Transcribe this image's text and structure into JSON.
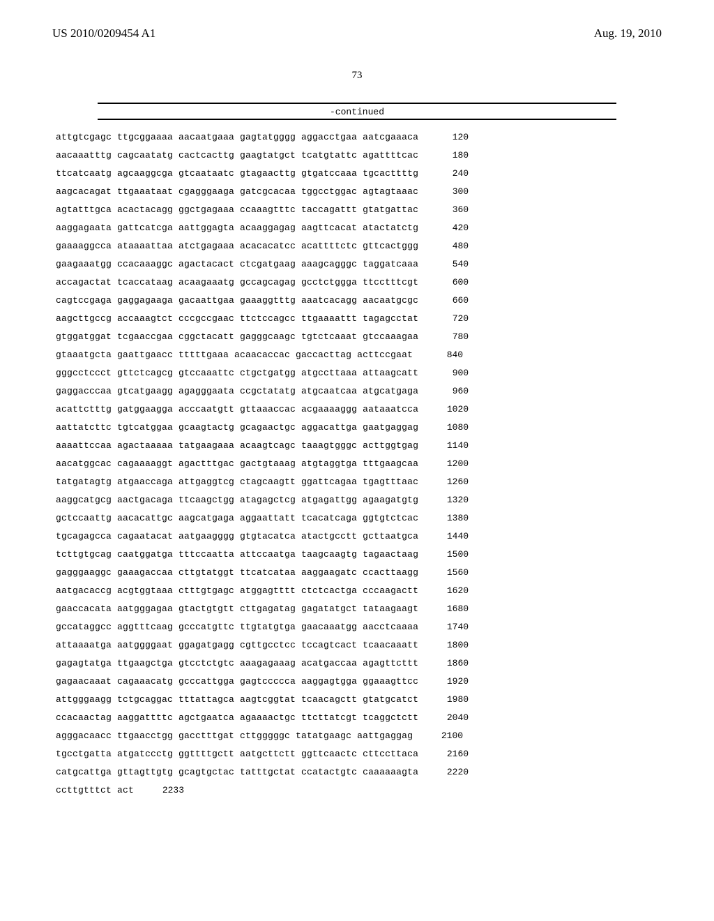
{
  "header": {
    "pub_number": "US 2010/0209454 A1",
    "pub_date": "Aug. 19, 2010"
  },
  "page_number": "73",
  "continued_label": "-continued",
  "sequence": {
    "rows": [
      {
        "g": [
          "attgtcgagc",
          "ttgcggaaaa",
          "aacaatgaaa",
          "gagtatgggg",
          "aggacctgaa",
          "aatcgaaaca"
        ],
        "pos": "120"
      },
      {
        "g": [
          "aacaaatttg",
          "cagcaatatg",
          "cactcacttg",
          "gaagtatgct",
          "tcatgtattc",
          "agattttcac"
        ],
        "pos": "180"
      },
      {
        "g": [
          "ttcatcaatg",
          "agcaaggcga",
          "gtcaataatc",
          "gtagaacttg",
          "gtgatccaaa",
          "tgcacttttg"
        ],
        "pos": "240"
      },
      {
        "g": [
          "aagcacagat",
          "ttgaaataat",
          "cgagggaaga",
          "gatcgcacaa",
          "tggcctggac",
          "agtagtaaac"
        ],
        "pos": "300"
      },
      {
        "g": [
          "agtatttgca",
          "acactacagg",
          "ggctgagaaa",
          "ccaaagtttc",
          "taccagattt",
          "gtatgattac"
        ],
        "pos": "360"
      },
      {
        "g": [
          "aaggagaata",
          "gattcatcga",
          "aattggagta",
          "acaaggagag",
          "aagttcacat",
          "atactatctg"
        ],
        "pos": "420"
      },
      {
        "g": [
          "gaaaaggcca",
          "ataaaattaa",
          "atctgagaaa",
          "acacacatcc",
          "acattttctc",
          "gttcactggg"
        ],
        "pos": "480"
      },
      {
        "g": [
          "gaagaaatgg",
          "ccacaaaggc",
          "agactacact",
          "ctcgatgaag",
          "aaagcagggc",
          "taggatcaaa"
        ],
        "pos": "540"
      },
      {
        "g": [
          "accagactat",
          "tcaccataag",
          "acaagaaatg",
          "gccagcagag",
          "gcctctggga",
          "ttcctttcgt"
        ],
        "pos": "600"
      },
      {
        "g": [
          "cagtccgaga",
          "gaggagaaga",
          "gacaattgaa",
          "gaaaggtttg",
          "aaatcacagg",
          "aacaatgcgc"
        ],
        "pos": "660"
      },
      {
        "g": [
          "aagcttgccg",
          "accaaagtct",
          "cccgccgaac",
          "ttctccagcc",
          "ttgaaaattt",
          "tagagcctat"
        ],
        "pos": "720"
      },
      {
        "g": [
          "gtggatggat",
          "tcgaaccgaa",
          "cggctacatt",
          "gagggcaagc",
          "tgtctcaaat",
          "gtccaaagaa"
        ],
        "pos": "780"
      },
      {
        "g": [
          "gtaaatgcta",
          "gaattgaacc",
          "tttttgaaa",
          "acaacaccac",
          "gaccacttag",
          "acttccgaat"
        ],
        "pos": "840"
      },
      {
        "g": [
          "gggcctccct",
          "gttctcagcg",
          "gtccaaattc",
          "ctgctgatgg",
          "atgccttaaa",
          "attaagcatt"
        ],
        "pos": "900"
      },
      {
        "g": [
          "gaggacccaa",
          "gtcatgaagg",
          "agagggaata",
          "ccgctatatg",
          "atgcaatcaa",
          "atgcatgaga"
        ],
        "pos": "960"
      },
      {
        "g": [
          "acattctttg",
          "gatggaagga",
          "acccaatgtt",
          "gttaaaccac",
          "acgaaaaggg",
          "aataaatcca"
        ],
        "pos": "1020"
      },
      {
        "g": [
          "aattatcttc",
          "tgtcatggaa",
          "gcaagtactg",
          "gcagaactgc",
          "aggacattga",
          "gaatgaggag"
        ],
        "pos": "1080"
      },
      {
        "g": [
          "aaaattccaa",
          "agactaaaaa",
          "tatgaagaaa",
          "acaagtcagc",
          "taaagtgggc",
          "acttggtgag"
        ],
        "pos": "1140"
      },
      {
        "g": [
          "aacatggcac",
          "cagaaaaggt",
          "agactttgac",
          "gactgtaaag",
          "atgtaggtga",
          "tttgaagcaa"
        ],
        "pos": "1200"
      },
      {
        "g": [
          "tatgatagtg",
          "atgaaccaga",
          "attgaggtcg",
          "ctagcaagtt",
          "ggattcagaa",
          "tgagtttaac"
        ],
        "pos": "1260"
      },
      {
        "g": [
          "aaggcatgcg",
          "aactgacaga",
          "ttcaagctgg",
          "atagagctcg",
          "atgagattgg",
          "agaagatgtg"
        ],
        "pos": "1320"
      },
      {
        "g": [
          "gctccaattg",
          "aacacattgc",
          "aagcatgaga",
          "aggaattatt",
          "tcacatcaga",
          "ggtgtctcac"
        ],
        "pos": "1380"
      },
      {
        "g": [
          "tgcagagcca",
          "cagaatacat",
          "aatgaagggg",
          "gtgtacatca",
          "atactgcctt",
          "gcttaatgca"
        ],
        "pos": "1440"
      },
      {
        "g": [
          "tcttgtgcag",
          "caatggatga",
          "tttccaatta",
          "attccaatga",
          "taagcaagtg",
          "tagaactaag"
        ],
        "pos": "1500"
      },
      {
        "g": [
          "gagggaaggc",
          "gaaagaccaa",
          "cttgtatggt",
          "ttcatcataa",
          "aaggaagatc",
          "ccacttaagg"
        ],
        "pos": "1560"
      },
      {
        "g": [
          "aatgacaccg",
          "acgtggtaaa",
          "ctttgtgagc",
          "atggagtttt",
          "ctctcactga",
          "cccaagactt"
        ],
        "pos": "1620"
      },
      {
        "g": [
          "gaaccacata",
          "aatgggagaa",
          "gtactgtgtt",
          "cttgagatag",
          "gagatatgct",
          "tataagaagt"
        ],
        "pos": "1680"
      },
      {
        "g": [
          "gccataggcc",
          "aggtttcaag",
          "gcccatgttc",
          "ttgtatgtga",
          "gaacaaatgg",
          "aacctcaaaa"
        ],
        "pos": "1740"
      },
      {
        "g": [
          "attaaaatga",
          "aatggggaat",
          "ggagatgagg",
          "cgttgcctcc",
          "tccagtcact",
          "tcaacaaatt"
        ],
        "pos": "1800"
      },
      {
        "g": [
          "gagagtatga",
          "ttgaagctga",
          "gtcctctgtc",
          "aaagagaaag",
          "acatgaccaa",
          "agagttcttt"
        ],
        "pos": "1860"
      },
      {
        "g": [
          "gagaacaaat",
          "cagaaacatg",
          "gcccattgga",
          "gagtccccca",
          "aaggagtgga",
          "ggaaagttcc"
        ],
        "pos": "1920"
      },
      {
        "g": [
          "attgggaagg",
          "tctgcaggac",
          "tttattagca",
          "aagtcggtat",
          "tcaacagctt",
          "gtatgcatct"
        ],
        "pos": "1980"
      },
      {
        "g": [
          "ccacaactag",
          "aaggattttc",
          "agctgaatca",
          "agaaaactgc",
          "ttcttatcgt",
          "tcaggctctt"
        ],
        "pos": "2040"
      },
      {
        "g": [
          "agggacaacc",
          "ttgaacctgg",
          "gacctttgat",
          "cttgggggc",
          "tatatgaagc",
          "aattgaggag"
        ],
        "pos": "2100"
      },
      {
        "g": [
          "tgcctgatta",
          "atgatccctg",
          "ggttttgctt",
          "aatgcttctt",
          "ggttcaactc",
          "cttccttaca"
        ],
        "pos": "2160"
      },
      {
        "g": [
          "catgcattga",
          "gttagttgtg",
          "gcagtgctac",
          "tatttgctat",
          "ccatactgtc",
          "caaaaaagta"
        ],
        "pos": "2220"
      },
      {
        "g": [
          "ccttgtttct",
          "act",
          "",
          "",
          "",
          ""
        ],
        "pos": "2233"
      }
    ]
  }
}
